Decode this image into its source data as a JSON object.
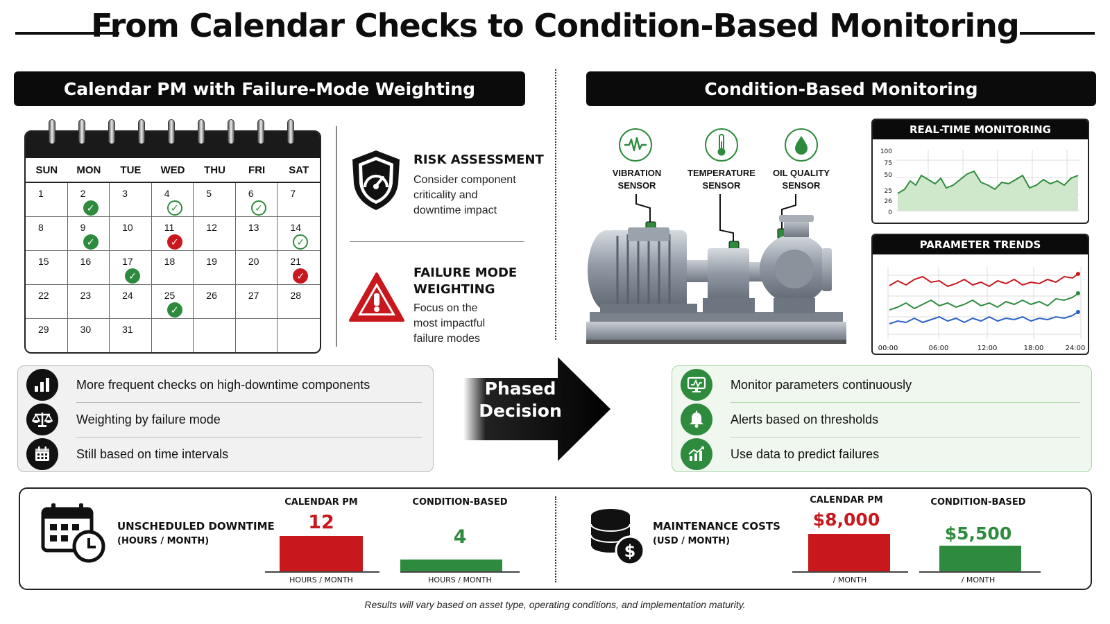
{
  "title": "From Calendar Checks to Condition-Based Monitoring",
  "left": {
    "header": "Calendar PM with Failure-Mode Weighting",
    "calendar": {
      "weekdays": [
        "SUN",
        "MON",
        "TUE",
        "WED",
        "THU",
        "FRI",
        "SAT"
      ],
      "days": [
        {
          "d": "1",
          "mark": ""
        },
        {
          "d": "2",
          "mark": "green"
        },
        {
          "d": "3",
          "mark": ""
        },
        {
          "d": "4",
          "mark": "green-outline"
        },
        {
          "d": "5",
          "mark": ""
        },
        {
          "d": "6",
          "mark": "green-outline"
        },
        {
          "d": "7",
          "mark": ""
        },
        {
          "d": "8",
          "mark": ""
        },
        {
          "d": "9",
          "mark": "green"
        },
        {
          "d": "10",
          "mark": ""
        },
        {
          "d": "11",
          "mark": "red"
        },
        {
          "d": "12",
          "mark": ""
        },
        {
          "d": "13",
          "mark": ""
        },
        {
          "d": "14",
          "mark": "green-outline"
        },
        {
          "d": "15",
          "mark": ""
        },
        {
          "d": "16",
          "mark": ""
        },
        {
          "d": "17",
          "mark": "green"
        },
        {
          "d": "18",
          "mark": ""
        },
        {
          "d": "19",
          "mark": ""
        },
        {
          "d": "20",
          "mark": ""
        },
        {
          "d": "21",
          "mark": "red"
        },
        {
          "d": "22",
          "mark": ""
        },
        {
          "d": "23",
          "mark": ""
        },
        {
          "d": "24",
          "mark": ""
        },
        {
          "d": "25",
          "mark": "green"
        },
        {
          "d": "26",
          "mark": ""
        },
        {
          "d": "27",
          "mark": ""
        },
        {
          "d": "28",
          "mark": ""
        },
        {
          "d": "29",
          "mark": ""
        },
        {
          "d": "30",
          "mark": ""
        },
        {
          "d": "31",
          "mark": ""
        },
        {
          "d": "",
          "mark": ""
        },
        {
          "d": "",
          "mark": ""
        },
        {
          "d": "",
          "mark": ""
        },
        {
          "d": "",
          "mark": ""
        }
      ]
    },
    "risk": {
      "heading": "RISK ASSESSMENT",
      "lines": [
        "Consider component",
        "criticality and",
        "downtime impact"
      ]
    },
    "failure": {
      "heading_1": "FAILURE MODE",
      "heading_2": "WEIGHTING",
      "lines": [
        "Focus on the",
        "most impactful",
        "failure modes"
      ]
    },
    "bullets": [
      {
        "icon": "bar-chart-icon",
        "text": "More frequent checks on high-downtime components"
      },
      {
        "icon": "scales-icon",
        "text": "Weighting by failure mode"
      },
      {
        "icon": "calendar-icon",
        "text": "Still based on time intervals"
      }
    ]
  },
  "center": {
    "arrow_line_1": "Phased",
    "arrow_line_2": "Decision"
  },
  "right": {
    "header": "Condition-Based Monitoring",
    "sensors": [
      {
        "icon": "vibration-wave-icon",
        "line1": "VIBRATION",
        "line2": "SENSOR"
      },
      {
        "icon": "thermometer-icon",
        "line1": "TEMPERATURE",
        "line2": "SENSOR"
      },
      {
        "icon": "oil-drop-icon",
        "line1": "OIL QUALITY",
        "line2": "SENSOR"
      }
    ],
    "realtime": {
      "title": "REAL-TIME MONITORING",
      "y_ticks": [
        "100",
        "75",
        "50",
        "25",
        "26",
        "0"
      ]
    },
    "trends": {
      "title": "PARAMETER TRENDS",
      "x_ticks": [
        "00:00",
        "06:00",
        "12:00",
        "18:00",
        "24:00"
      ]
    },
    "bullets": [
      {
        "icon": "monitor-icon",
        "text": "Monitor parameters continuously"
      },
      {
        "icon": "bell-icon",
        "text": "Alerts based on thresholds"
      },
      {
        "icon": "growth-chart-icon",
        "text": "Use data to predict failures"
      }
    ]
  },
  "comparison": {
    "downtime": {
      "label_1": "UNSCHEDULED DOWNTIME",
      "label_2": "(HOURS / MONTH)",
      "cols": [
        {
          "head": "CALENDAR PM",
          "value": "12",
          "unit": "HOURS / MONTH",
          "color": "#c8181e"
        },
        {
          "head": "CONDITION-BASED",
          "value": "4",
          "unit": "HOURS / MONTH",
          "color": "#2e8b3d"
        }
      ]
    },
    "costs": {
      "label_1": "MAINTENANCE COSTS",
      "label_2": "(USD / MONTH)",
      "cols": [
        {
          "head": "CALENDAR PM",
          "value": "$8,000",
          "unit": "/ MONTH",
          "color": "#c8181e"
        },
        {
          "head": "CONDITION-BASED",
          "value": "$5,500",
          "unit": "/ MONTH",
          "color": "#2e8b3d"
        }
      ]
    }
  },
  "footnote": "Results will vary based on asset type, operating conditions, and implementation maturity.",
  "colors": {
    "green": "#2e8b3d",
    "red": "#c8181e",
    "dark": "#0b0b0b"
  }
}
